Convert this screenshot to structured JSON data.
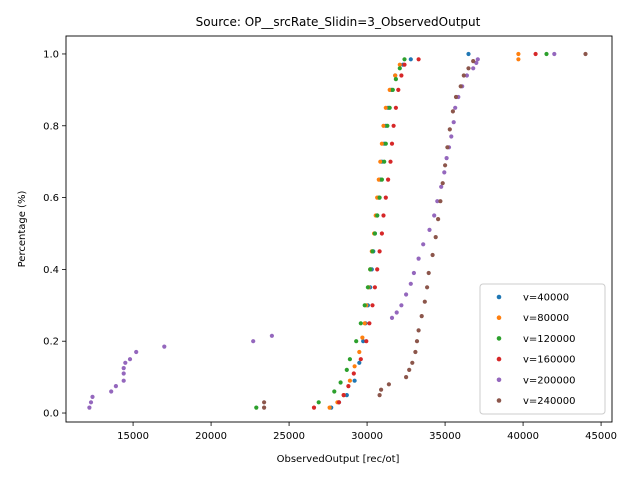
{
  "chart_data": {
    "type": "scatter",
    "title": "Source: OP__srcRate_Slidin=3_ObservedOutput",
    "xlabel": "ObservedOutput [rec/ot]",
    "ylabel": "Percentage (%)",
    "xlim": [
      10700,
      45700
    ],
    "ylim": [
      -0.025,
      1.05
    ],
    "xticks": [
      15000,
      20000,
      25000,
      30000,
      35000,
      40000,
      45000
    ],
    "yticks": [
      0.0,
      0.2,
      0.4,
      0.6,
      0.8,
      1.0
    ],
    "xtick_labels": [
      "15000",
      "20000",
      "25000",
      "30000",
      "35000",
      "40000",
      "45000"
    ],
    "ytick_labels": [
      "0.0",
      "0.2",
      "0.4",
      "0.6",
      "0.8",
      "1.0"
    ],
    "legend_position": "lower right",
    "grid": false,
    "series": [
      {
        "name": "v=40000",
        "color": "#1f77b4",
        "points": [
          [
            27700,
            0.015
          ],
          [
            28200,
            0.03
          ],
          [
            28700,
            0.05
          ],
          [
            29200,
            0.09
          ],
          [
            29500,
            0.14
          ],
          [
            29750,
            0.2
          ],
          [
            29900,
            0.25
          ],
          [
            30050,
            0.3
          ],
          [
            30200,
            0.35
          ],
          [
            30300,
            0.4
          ],
          [
            30400,
            0.45
          ],
          [
            30500,
            0.5
          ],
          [
            30650,
            0.55
          ],
          [
            30750,
            0.6
          ],
          [
            30850,
            0.65
          ],
          [
            30950,
            0.7
          ],
          [
            31100,
            0.75
          ],
          [
            31200,
            0.8
          ],
          [
            31350,
            0.85
          ],
          [
            31550,
            0.9
          ],
          [
            31800,
            0.94
          ],
          [
            32300,
            0.97
          ],
          [
            32800,
            0.985
          ],
          [
            36500,
            1.0
          ]
        ]
      },
      {
        "name": "v=80000",
        "color": "#ff7f0e",
        "points": [
          [
            27600,
            0.015
          ],
          [
            28100,
            0.03
          ],
          [
            28500,
            0.05
          ],
          [
            28900,
            0.09
          ],
          [
            29200,
            0.13
          ],
          [
            29500,
            0.17
          ],
          [
            29700,
            0.21
          ],
          [
            29850,
            0.25
          ],
          [
            29950,
            0.3
          ],
          [
            30100,
            0.35
          ],
          [
            30200,
            0.4
          ],
          [
            30300,
            0.45
          ],
          [
            30450,
            0.5
          ],
          [
            30550,
            0.55
          ],
          [
            30650,
            0.6
          ],
          [
            30750,
            0.65
          ],
          [
            30850,
            0.7
          ],
          [
            30950,
            0.75
          ],
          [
            31050,
            0.8
          ],
          [
            31200,
            0.85
          ],
          [
            31450,
            0.9
          ],
          [
            31800,
            0.94
          ],
          [
            32100,
            0.97
          ],
          [
            39700,
            0.985
          ],
          [
            39700,
            1.0
          ]
        ]
      },
      {
        "name": "v=120000",
        "color": "#2ca02c",
        "points": [
          [
            22900,
            0.015
          ],
          [
            26900,
            0.03
          ],
          [
            27900,
            0.06
          ],
          [
            28300,
            0.085
          ],
          [
            28700,
            0.12
          ],
          [
            28900,
            0.15
          ],
          [
            29300,
            0.2
          ],
          [
            29600,
            0.25
          ],
          [
            29850,
            0.3
          ],
          [
            30050,
            0.35
          ],
          [
            30200,
            0.4
          ],
          [
            30350,
            0.45
          ],
          [
            30500,
            0.5
          ],
          [
            30650,
            0.55
          ],
          [
            30800,
            0.6
          ],
          [
            30950,
            0.65
          ],
          [
            31100,
            0.7
          ],
          [
            31200,
            0.75
          ],
          [
            31300,
            0.8
          ],
          [
            31450,
            0.85
          ],
          [
            31650,
            0.9
          ],
          [
            31850,
            0.93
          ],
          [
            32100,
            0.96
          ],
          [
            32400,
            0.985
          ],
          [
            41500,
            1.0
          ]
        ]
      },
      {
        "name": "v=160000",
        "color": "#d62728",
        "points": [
          [
            26600,
            0.015
          ],
          [
            28200,
            0.03
          ],
          [
            28500,
            0.05
          ],
          [
            28800,
            0.075
          ],
          [
            29150,
            0.11
          ],
          [
            29600,
            0.15
          ],
          [
            29950,
            0.2
          ],
          [
            30150,
            0.25
          ],
          [
            30350,
            0.3
          ],
          [
            30500,
            0.35
          ],
          [
            30650,
            0.4
          ],
          [
            30800,
            0.45
          ],
          [
            30950,
            0.5
          ],
          [
            31050,
            0.55
          ],
          [
            31200,
            0.6
          ],
          [
            31350,
            0.65
          ],
          [
            31500,
            0.7
          ],
          [
            31600,
            0.75
          ],
          [
            31700,
            0.8
          ],
          [
            31850,
            0.85
          ],
          [
            32000,
            0.9
          ],
          [
            32200,
            0.94
          ],
          [
            32400,
            0.97
          ],
          [
            33300,
            0.985
          ],
          [
            40800,
            1.0
          ]
        ]
      },
      {
        "name": "v=200000",
        "color": "#9467bd",
        "points": [
          [
            12200,
            0.015
          ],
          [
            12300,
            0.03
          ],
          [
            12400,
            0.045
          ],
          [
            13600,
            0.06
          ],
          [
            13900,
            0.075
          ],
          [
            14400,
            0.09
          ],
          [
            14400,
            0.11
          ],
          [
            14400,
            0.125
          ],
          [
            14500,
            0.14
          ],
          [
            14800,
            0.15
          ],
          [
            15200,
            0.17
          ],
          [
            17000,
            0.185
          ],
          [
            22700,
            0.2
          ],
          [
            23900,
            0.215
          ],
          [
            31600,
            0.265
          ],
          [
            31900,
            0.28
          ],
          [
            32200,
            0.3
          ],
          [
            32500,
            0.33
          ],
          [
            32800,
            0.36
          ],
          [
            33000,
            0.39
          ],
          [
            33300,
            0.43
          ],
          [
            33600,
            0.47
          ],
          [
            34000,
            0.51
          ],
          [
            34300,
            0.55
          ],
          [
            34500,
            0.59
          ],
          [
            34750,
            0.63
          ],
          [
            34950,
            0.67
          ],
          [
            35100,
            0.71
          ],
          [
            35250,
            0.74
          ],
          [
            35400,
            0.77
          ],
          [
            35550,
            0.81
          ],
          [
            35650,
            0.85
          ],
          [
            35850,
            0.88
          ],
          [
            36100,
            0.91
          ],
          [
            36400,
            0.94
          ],
          [
            36800,
            0.96
          ],
          [
            37000,
            0.975
          ],
          [
            37100,
            0.985
          ],
          [
            42000,
            1.0
          ]
        ]
      },
      {
        "name": "v=240000",
        "color": "#8c564b",
        "points": [
          [
            23400,
            0.015
          ],
          [
            23400,
            0.03
          ],
          [
            30800,
            0.05
          ],
          [
            30900,
            0.065
          ],
          [
            31400,
            0.08
          ],
          [
            32500,
            0.1
          ],
          [
            32700,
            0.12
          ],
          [
            32900,
            0.14
          ],
          [
            33100,
            0.17
          ],
          [
            33200,
            0.2
          ],
          [
            33300,
            0.23
          ],
          [
            33500,
            0.27
          ],
          [
            33700,
            0.31
          ],
          [
            33850,
            0.35
          ],
          [
            33950,
            0.39
          ],
          [
            34200,
            0.44
          ],
          [
            34400,
            0.49
          ],
          [
            34550,
            0.54
          ],
          [
            34700,
            0.59
          ],
          [
            34850,
            0.64
          ],
          [
            35000,
            0.69
          ],
          [
            35150,
            0.74
          ],
          [
            35300,
            0.79
          ],
          [
            35500,
            0.84
          ],
          [
            35700,
            0.88
          ],
          [
            36000,
            0.91
          ],
          [
            36200,
            0.94
          ],
          [
            36500,
            0.96
          ],
          [
            36800,
            0.98
          ],
          [
            44000,
            1.0
          ]
        ]
      }
    ]
  }
}
